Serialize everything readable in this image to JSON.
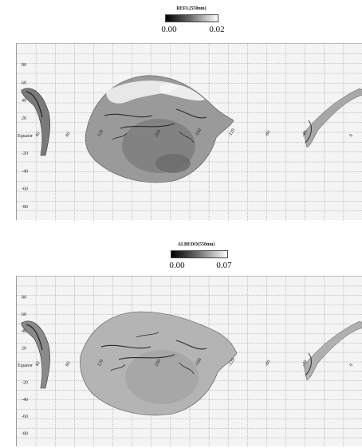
{
  "panels": [
    {
      "colorbar": {
        "title": "REFL(550nm)",
        "min_label": "0.00",
        "max_label": "0.02"
      },
      "lat_labels": [
        "80",
        "60",
        "40",
        "20",
        "Equator",
        "-20",
        "-40",
        "-60",
        "-80"
      ],
      "lon_labels": [
        "40",
        "80",
        "120",
        "200",
        "-160",
        "-120",
        "-80",
        "-40",
        "0"
      ]
    },
    {
      "colorbar": {
        "title": "ALBEDO(550nm)",
        "min_label": "0.00",
        "max_label": "0.07"
      },
      "lat_labels": [
        "80",
        "60",
        "40",
        "20",
        "Equator",
        "-20",
        "-40",
        "-60",
        "-80"
      ],
      "lon_labels": [
        "40",
        "80",
        "120",
        "200",
        "-160",
        "-120",
        "-80",
        "-40",
        "0"
      ]
    }
  ]
}
